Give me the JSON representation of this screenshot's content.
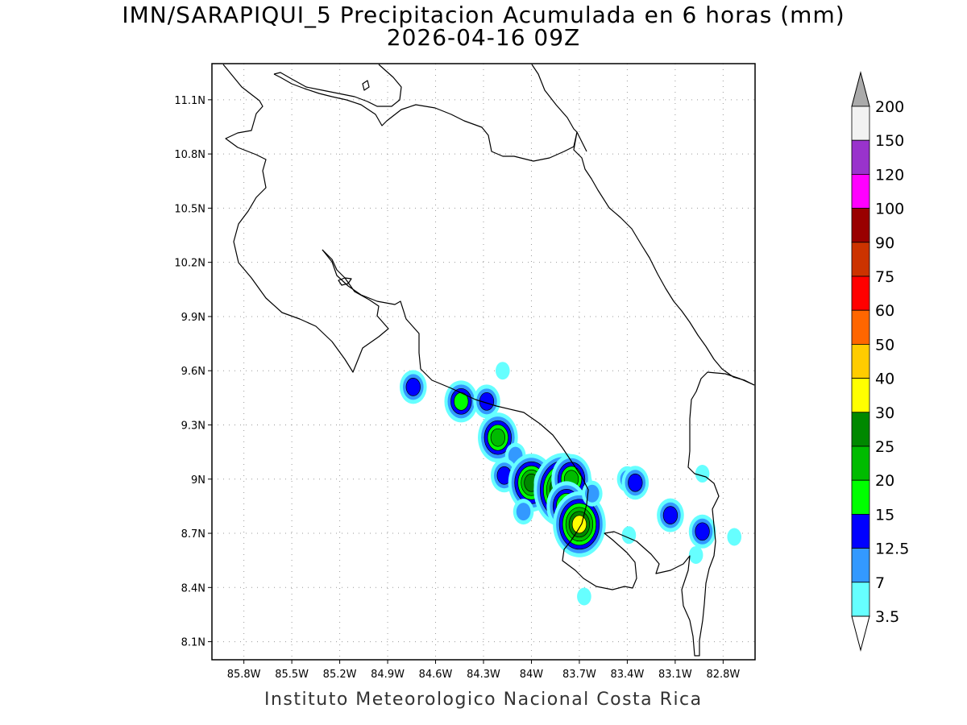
{
  "title_line1": "IMN/SARAPIQUI_5 Precipitacion Acumulada en 6 horas (mm)",
  "title_line2": "2026-04-16 09Z",
  "credit": "Instituto Meteorologico Nacional Costa Rica",
  "map": {
    "lon_range": [
      -86.0,
      -82.6
    ],
    "lat_range": [
      8.0,
      11.3
    ],
    "lon_ticks": [
      "85.8W",
      "85.5W",
      "85.2W",
      "84.9W",
      "84.6W",
      "84.3W",
      "84W",
      "83.7W",
      "83.4W",
      "83.1W",
      "82.8W"
    ],
    "lat_ticks": [
      "11.1N",
      "10.8N",
      "10.5N",
      "10.2N",
      "9.9N",
      "9.6N",
      "9.3N",
      "9N",
      "8.7N",
      "8.4N",
      "8.1N"
    ],
    "grid": "dotted"
  },
  "colorbar": {
    "labels": [
      "200",
      "150",
      "120",
      "100",
      "90",
      "75",
      "60",
      "50",
      "40",
      "30",
      "25",
      "20",
      "15",
      "12.5",
      "7",
      "3.5"
    ],
    "colors": [
      "#f2f2f2",
      "#9933cc",
      "#ff00ff",
      "#990000",
      "#cc3300",
      "#ff0000",
      "#ff6600",
      "#ffcc00",
      "#ffff00",
      "#008800",
      "#00bb00",
      "#00ff00",
      "#0000ff",
      "#3399ff",
      "#66ffff"
    ],
    "over_color": "#aaaaaa",
    "under_color": "#ffffff"
  },
  "precip_cells": [
    {
      "lon": -84.74,
      "lat": 9.51,
      "level": 3
    },
    {
      "lon": -84.44,
      "lat": 9.43,
      "level": 4
    },
    {
      "lon": -84.28,
      "lat": 9.43,
      "level": 3
    },
    {
      "lon": -84.21,
      "lat": 9.23,
      "level": 5
    },
    {
      "lon": -84.18,
      "lat": 9.6,
      "level": 1
    },
    {
      "lon": -84.1,
      "lat": 9.13,
      "level": 2
    },
    {
      "lon": -84.17,
      "lat": 9.02,
      "level": 3
    },
    {
      "lon": -84.0,
      "lat": 8.98,
      "level": 6
    },
    {
      "lon": -83.9,
      "lat": 8.98,
      "level": 3
    },
    {
      "lon": -84.05,
      "lat": 8.82,
      "level": 2
    },
    {
      "lon": -83.8,
      "lat": 8.94,
      "level": 8
    },
    {
      "lon": -83.75,
      "lat": 9.0,
      "level": 5
    },
    {
      "lon": -83.78,
      "lat": 8.85,
      "level": 5
    },
    {
      "lon": -83.7,
      "lat": 8.75,
      "level": 7
    },
    {
      "lon": -83.62,
      "lat": 8.92,
      "level": 2
    },
    {
      "lon": -83.4,
      "lat": 9.0,
      "level": 2
    },
    {
      "lon": -83.35,
      "lat": 8.98,
      "level": 3
    },
    {
      "lon": -83.13,
      "lat": 8.8,
      "level": 3
    },
    {
      "lon": -82.93,
      "lat": 8.71,
      "level": 3
    },
    {
      "lon": -82.93,
      "lat": 9.03,
      "level": 1
    },
    {
      "lon": -82.97,
      "lat": 8.58,
      "level": 1
    },
    {
      "lon": -82.73,
      "lat": 8.68,
      "level": 1
    },
    {
      "lon": -83.67,
      "lat": 8.35,
      "level": 1
    },
    {
      "lon": -83.39,
      "lat": 8.69,
      "level": 1
    }
  ]
}
